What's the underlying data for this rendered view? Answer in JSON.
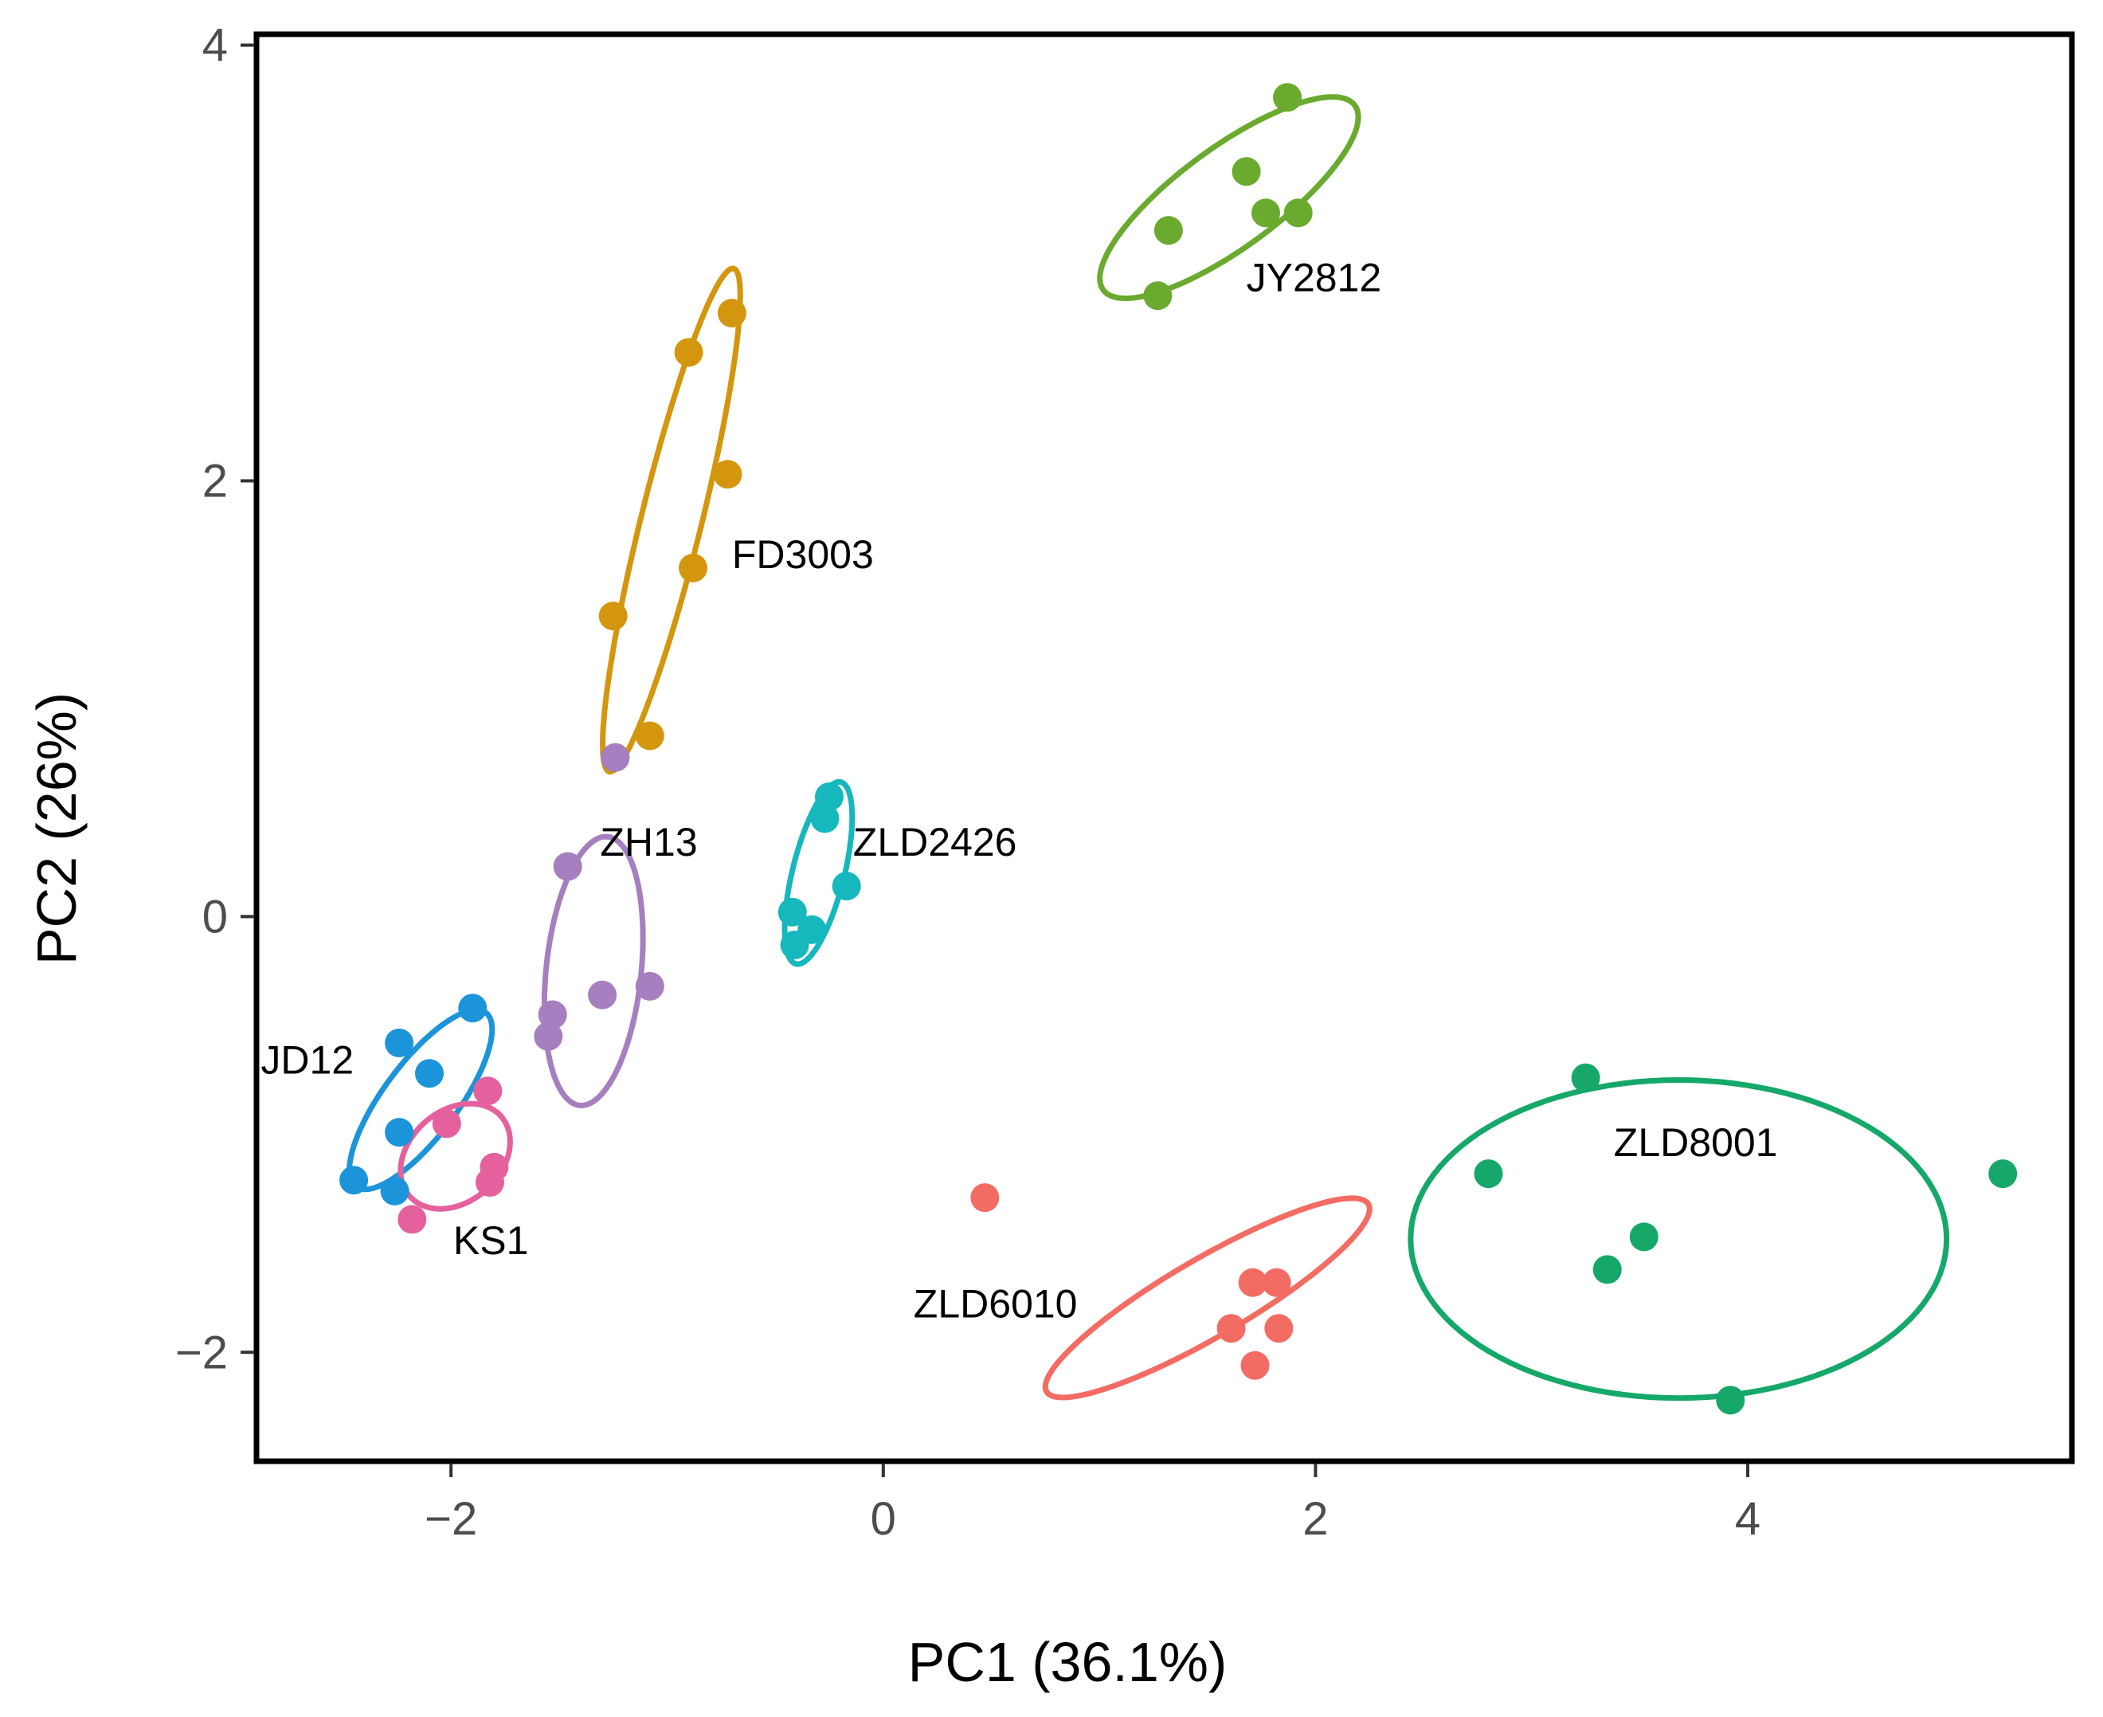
{
  "chart_data": {
    "type": "scatter",
    "title": "",
    "xlabel": "PC1 (36.1%)",
    "ylabel": "PC2 (26%)",
    "xlim": [
      -2.9,
      5.5
    ],
    "ylim": [
      -2.5,
      4.05
    ],
    "xticks": [
      -2,
      0,
      2,
      4
    ],
    "yticks": [
      -2,
      0,
      2,
      4
    ],
    "xtick_labels": [
      "−2",
      "0",
      "2",
      "4"
    ],
    "ytick_labels": [
      "−2",
      "0",
      "2",
      "4"
    ],
    "grid": false,
    "legend": "none",
    "series": [
      {
        "name": "JY2812",
        "color": "#6aaa2e",
        "points": [
          [
            1.87,
            3.76
          ],
          [
            1.68,
            3.42
          ],
          [
            1.77,
            3.23
          ],
          [
            1.92,
            3.23
          ],
          [
            1.32,
            3.15
          ],
          [
            1.27,
            2.85
          ]
        ],
        "label_pos": [
          1.68,
          2.87
        ],
        "ellipse": {
          "cx": 1.6,
          "cy": 3.3,
          "rx": 0.72,
          "ry": 0.23,
          "angle": 36
        }
      },
      {
        "name": "FD3003",
        "color": "#d4960e",
        "points": [
          [
            -0.7,
            2.77
          ],
          [
            -0.9,
            2.59
          ],
          [
            -0.72,
            2.03
          ],
          [
            -0.88,
            1.6
          ],
          [
            -1.25,
            1.38
          ],
          [
            -1.08,
            0.83
          ]
        ],
        "label_pos": [
          -0.7,
          1.6
        ],
        "ellipse": {
          "cx": -0.98,
          "cy": 1.82,
          "rx": 1.19,
          "ry": 0.14,
          "angle": 76
        }
      },
      {
        "name": "ZH13",
        "color": "#a57fbf",
        "points": [
          [
            -1.24,
            0.73
          ],
          [
            -1.46,
            0.23
          ],
          [
            -1.08,
            -0.32
          ],
          [
            -1.3,
            -0.36
          ],
          [
            -1.53,
            -0.45
          ],
          [
            -1.55,
            -0.55
          ]
        ],
        "label_pos": [
          -1.31,
          0.28
        ],
        "ellipse": {
          "cx": -1.34,
          "cy": -0.25,
          "rx": 0.62,
          "ry": 0.22,
          "angle": 84
        }
      },
      {
        "name": "ZLD2426",
        "color": "#16b7bd",
        "points": [
          [
            -0.25,
            0.55
          ],
          [
            -0.27,
            0.45
          ],
          [
            -0.17,
            0.14
          ],
          [
            -0.42,
            0.02
          ],
          [
            -0.33,
            -0.06
          ],
          [
            -0.41,
            -0.13
          ]
        ],
        "label_pos": [
          -0.14,
          0.28
        ],
        "ellipse": {
          "cx": -0.3,
          "cy": 0.2,
          "rx": 0.43,
          "ry": 0.12,
          "angle": 76
        }
      },
      {
        "name": "JD12",
        "color": "#1b94d9",
        "points": [
          [
            -1.9,
            -0.42
          ],
          [
            -2.24,
            -0.58
          ],
          [
            -2.1,
            -0.72
          ],
          [
            -2.24,
            -0.99
          ],
          [
            -2.45,
            -1.21
          ],
          [
            -2.26,
            -1.26
          ]
        ],
        "label_pos": [
          -2.88,
          -0.72
        ],
        "ellipse": {
          "cx": -2.14,
          "cy": -0.84,
          "rx": 0.5,
          "ry": 0.17,
          "angle": 53
        }
      },
      {
        "name": "KS1",
        "color": "#e4619e",
        "points": [
          [
            -1.83,
            -0.8
          ],
          [
            -2.02,
            -0.95
          ],
          [
            -1.8,
            -1.15
          ],
          [
            -1.82,
            -1.22
          ],
          [
            -2.18,
            -1.39
          ]
        ],
        "label_pos": [
          -1.99,
          -1.55
        ],
        "ellipse": {
          "cx": -1.98,
          "cy": -1.1,
          "rx": 0.28,
          "ry": 0.21,
          "angle": 40
        }
      },
      {
        "name": "ZLD6010",
        "color": "#f36c63",
        "points": [
          [
            0.47,
            -1.29
          ],
          [
            1.71,
            -1.68
          ],
          [
            1.82,
            -1.68
          ],
          [
            1.61,
            -1.89
          ],
          [
            1.83,
            -1.89
          ],
          [
            1.72,
            -2.06
          ]
        ],
        "label_pos": [
          0.14,
          -1.84
        ],
        "ellipse": {
          "cx": 1.5,
          "cy": -1.75,
          "rx": 0.86,
          "ry": 0.18,
          "angle": 30
        }
      },
      {
        "name": "ZLD8001",
        "color": "#15a86a",
        "points": [
          [
            3.25,
            -0.74
          ],
          [
            2.8,
            -1.18
          ],
          [
            5.18,
            -1.18
          ],
          [
            3.52,
            -1.47
          ],
          [
            3.35,
            -1.62
          ],
          [
            3.92,
            -2.22
          ]
        ],
        "label_pos": [
          3.38,
          -1.1
        ],
        "ellipse": {
          "cx": 3.68,
          "cy": -1.48,
          "rx": 1.24,
          "ry": 0.73,
          "angle": 0
        }
      }
    ]
  }
}
